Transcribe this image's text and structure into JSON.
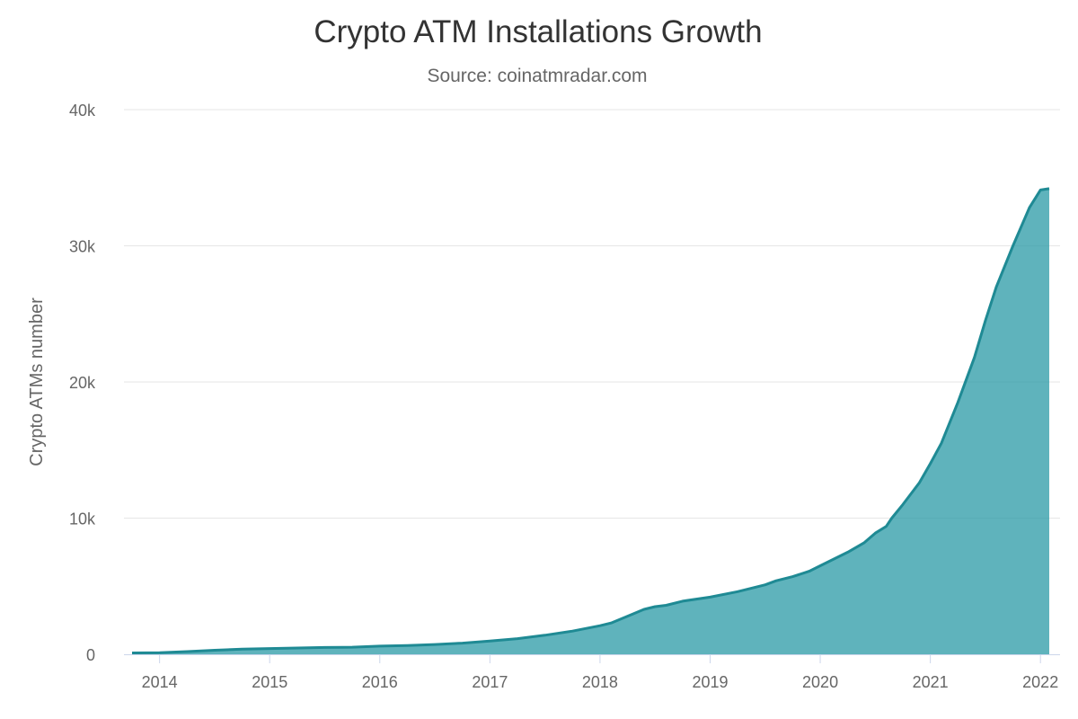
{
  "chart_data": {
    "type": "area",
    "title": "Crypto ATM Installations Growth",
    "subtitle": "Source: coinatmradar.com",
    "ylabel": "Crypto ATMs number",
    "xlabel": "",
    "ylim": [
      0,
      40000
    ],
    "yticks": [
      0,
      10000,
      20000,
      30000,
      40000
    ],
    "ytick_labels": [
      "0",
      "10k",
      "20k",
      "30k",
      "40k"
    ],
    "xlim": [
      2013.75,
      2022.08
    ],
    "xticks": [
      2014,
      2015,
      2016,
      2017,
      2018,
      2019,
      2020,
      2021,
      2022
    ],
    "xtick_labels": [
      "2014",
      "2015",
      "2016",
      "2017",
      "2018",
      "2019",
      "2020",
      "2021",
      "2022"
    ],
    "grid": true,
    "legend": "none",
    "color": "#2a9aa5",
    "series": [
      {
        "x": [
          2013.75,
          2014.0,
          2014.25,
          2014.5,
          2014.75,
          2015.0,
          2015.25,
          2015.5,
          2015.75,
          2016.0,
          2016.25,
          2016.5,
          2016.75,
          2017.0,
          2017.25,
          2017.5,
          2017.75,
          2018.0,
          2018.1,
          2018.25,
          2018.4,
          2018.5,
          2018.6,
          2018.75,
          2019.0,
          2019.25,
          2019.5,
          2019.6,
          2019.75,
          2019.9,
          2020.0,
          2020.25,
          2020.4,
          2020.5,
          2020.6,
          2020.65,
          2020.75,
          2020.9,
          2021.0,
          2021.1,
          2021.25,
          2021.4,
          2021.5,
          2021.6,
          2021.75,
          2021.9,
          2022.0,
          2022.08
        ],
        "values": [
          100,
          120,
          200,
          300,
          380,
          420,
          460,
          500,
          520,
          600,
          650,
          720,
          820,
          980,
          1150,
          1400,
          1700,
          2100,
          2300,
          2800,
          3300,
          3500,
          3600,
          3900,
          4200,
          4600,
          5100,
          5400,
          5700,
          6100,
          6500,
          7500,
          8200,
          8900,
          9400,
          10000,
          11000,
          12600,
          14000,
          15500,
          18500,
          21800,
          24500,
          27000,
          30000,
          32800,
          34100,
          34200
        ]
      }
    ]
  }
}
